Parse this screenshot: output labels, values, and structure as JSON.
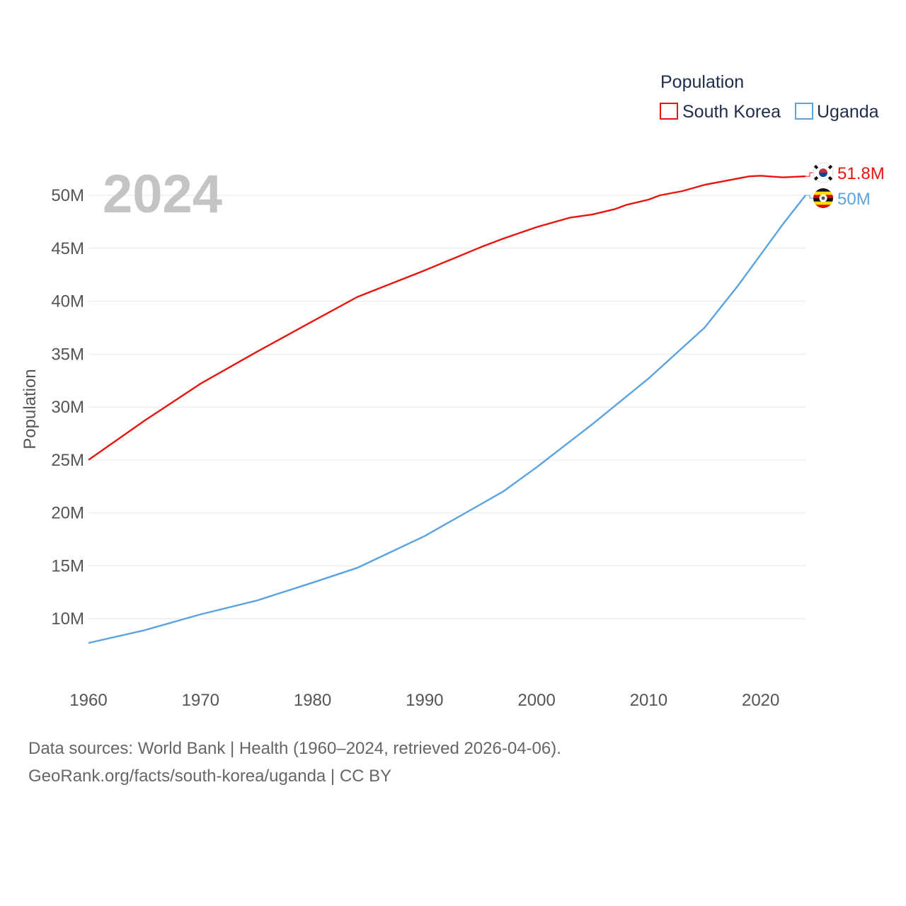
{
  "chart_data": {
    "type": "line",
    "year_label": "2024",
    "ylabel": "Population",
    "xlabel": "",
    "xlim": [
      1960,
      2024
    ],
    "ylim": [
      6000000,
      54000000
    ],
    "x_ticks": [
      1960,
      1970,
      1980,
      1990,
      2000,
      2010,
      2020
    ],
    "y_ticks": [
      {
        "value": 10000000,
        "label": "10M"
      },
      {
        "value": 15000000,
        "label": "15M"
      },
      {
        "value": 20000000,
        "label": "20M"
      },
      {
        "value": 25000000,
        "label": "25M"
      },
      {
        "value": 30000000,
        "label": "30M"
      },
      {
        "value": 35000000,
        "label": "35M"
      },
      {
        "value": 40000000,
        "label": "40M"
      },
      {
        "value": 45000000,
        "label": "45M"
      },
      {
        "value": 50000000,
        "label": "50M"
      }
    ],
    "legend": {
      "title": "Population",
      "placement": "top-right"
    },
    "series": [
      {
        "name": "South Korea",
        "color": "#e8140e",
        "end_label": "51.8M",
        "flag_icon": "south-korea-flag-icon",
        "points": [
          [
            1960,
            25000000
          ],
          [
            1965,
            28700000
          ],
          [
            1970,
            32200000
          ],
          [
            1975,
            35200000
          ],
          [
            1980,
            38100000
          ],
          [
            1984,
            40400000
          ],
          [
            1990,
            42900000
          ],
          [
            1995,
            45100000
          ],
          [
            1997,
            45900000
          ],
          [
            2000,
            47000000
          ],
          [
            2003,
            47900000
          ],
          [
            2005,
            48200000
          ],
          [
            2007,
            48700000
          ],
          [
            2008,
            49100000
          ],
          [
            2010,
            49600000
          ],
          [
            2011,
            50000000
          ],
          [
            2013,
            50400000
          ],
          [
            2015,
            51000000
          ],
          [
            2017,
            51400000
          ],
          [
            2019,
            51800000
          ],
          [
            2020,
            51850000
          ],
          [
            2022,
            51700000
          ],
          [
            2024,
            51800000
          ]
        ]
      },
      {
        "name": "Uganda",
        "color": "#5aa3e0",
        "end_label": "50M",
        "flag_icon": "uganda-flag-icon",
        "points": [
          [
            1960,
            7700000
          ],
          [
            1965,
            8900000
          ],
          [
            1970,
            10400000
          ],
          [
            1975,
            11700000
          ],
          [
            1980,
            13400000
          ],
          [
            1984,
            14800000
          ],
          [
            1990,
            17800000
          ],
          [
            1994,
            20200000
          ],
          [
            1997,
            22000000
          ],
          [
            2000,
            24300000
          ],
          [
            2005,
            28400000
          ],
          [
            2010,
            32700000
          ],
          [
            2015,
            37500000
          ],
          [
            2018,
            41500000
          ],
          [
            2020,
            44400000
          ],
          [
            2022,
            47300000
          ],
          [
            2024,
            50000000
          ]
        ]
      }
    ]
  },
  "source": {
    "line1": "Data sources: World Bank | Health (1960–2024, retrieved 2026-04-06).",
    "line2": "GeoRank.org/facts/south-korea/uganda | CC BY"
  }
}
